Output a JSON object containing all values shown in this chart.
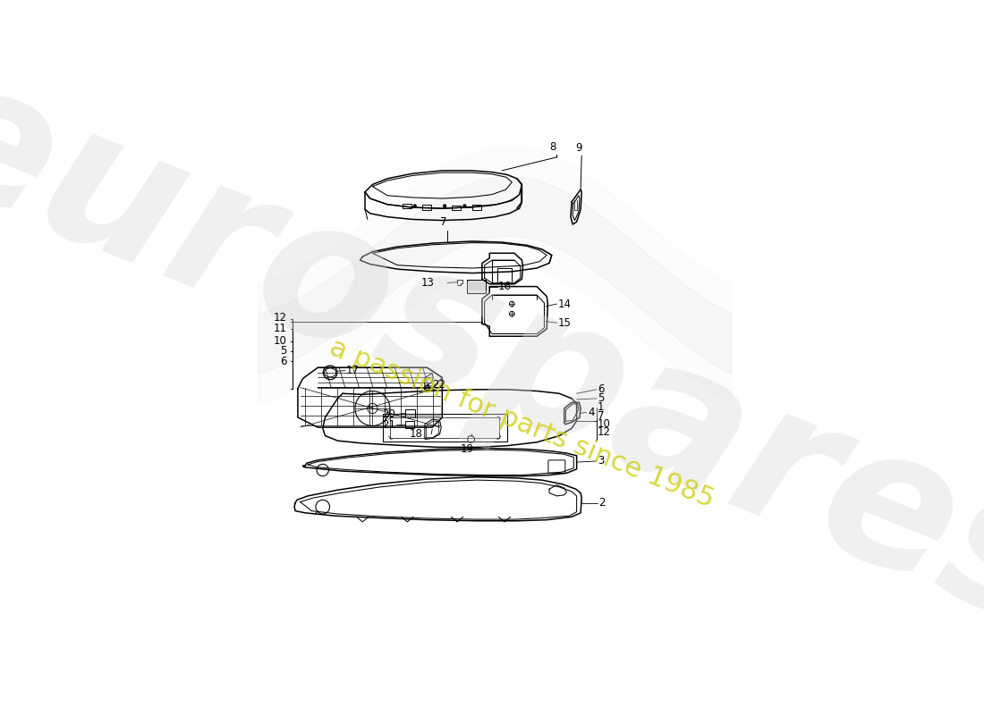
{
  "bg_color": "#ffffff",
  "lc": "#000000",
  "wm_text": "eurospares",
  "wm_slogan": "a passion for parts since 1985",
  "wm_color": "#d8d8d8",
  "wm_slogan_color": "#cccc00",
  "fs": 8.5
}
